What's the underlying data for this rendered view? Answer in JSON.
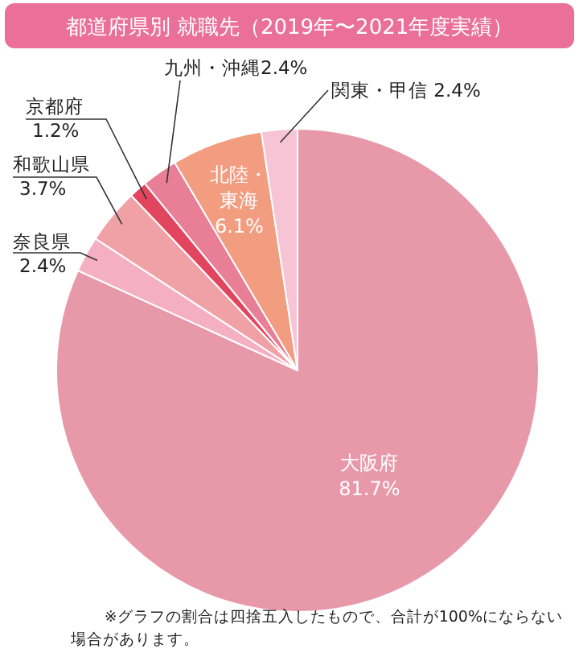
{
  "chart_data": {
    "type": "pie",
    "title": "都道府県別 就職先（2019年〜2021年度実績）",
    "categories": [
      "大阪府",
      "奈良県",
      "和歌山県",
      "京都府",
      "九州・沖縄",
      "北陸・東海",
      "関東・甲信"
    ],
    "values": [
      81.7,
      2.4,
      3.7,
      1.2,
      2.4,
      6.1,
      2.4
    ],
    "value_labels": [
      "81.7%",
      "2.4%",
      "3.7%",
      "1.2%",
      "2.4%",
      "6.1%",
      "2.4%"
    ],
    "colors": [
      "#e899a9",
      "#f4afc3",
      "#f0a1a6",
      "#e2465e",
      "#e87f97",
      "#f29c80",
      "#f7c4d6"
    ],
    "annotations": [
      "※グラフの割合は四捨五入したもので、合計が100%にならない場合があります。"
    ]
  }
}
